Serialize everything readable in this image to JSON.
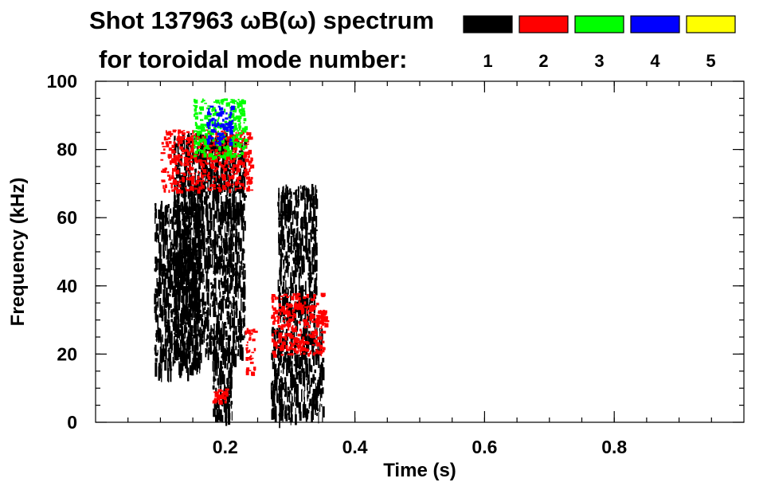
{
  "chart_data": {
    "type": "heatmap",
    "title_line1": "Shot 137963 ωB(ω) spectrum",
    "title_line2": "for toroidal mode number:",
    "xlabel": "Time (s)",
    "ylabel": "Frequency (kHz)",
    "xlim": [
      0.0,
      1.0
    ],
    "ylim": [
      0,
      100
    ],
    "x_ticks": [
      {
        "value": 0.2,
        "label": "0.2"
      },
      {
        "value": 0.4,
        "label": "0.4"
      },
      {
        "value": 0.6,
        "label": "0.6"
      },
      {
        "value": 0.8,
        "label": "0.8"
      }
    ],
    "y_ticks": [
      {
        "value": 0,
        "label": "0"
      },
      {
        "value": 20,
        "label": "20"
      },
      {
        "value": 40,
        "label": "40"
      },
      {
        "value": 60,
        "label": "60"
      },
      {
        "value": 80,
        "label": "80"
      },
      {
        "value": 100,
        "label": "100"
      }
    ],
    "legend": [
      {
        "mode": "1",
        "color": "#000000"
      },
      {
        "mode": "2",
        "color": "#ff0000"
      },
      {
        "mode": "3",
        "color": "#00ff00"
      },
      {
        "mode": "4",
        "color": "#0000ff"
      },
      {
        "mode": "5",
        "color": "#ffff00"
      }
    ],
    "regions": [
      {
        "mode": "1",
        "t": [
          0.09,
          0.16
        ],
        "f": [
          15,
          65
        ]
      },
      {
        "mode": "1",
        "t": [
          0.12,
          0.23
        ],
        "f": [
          20,
          85
        ]
      },
      {
        "mode": "1",
        "t": [
          0.27,
          0.35
        ],
        "f": [
          2,
          28
        ]
      },
      {
        "mode": "1",
        "t": [
          0.18,
          0.21
        ],
        "f": [
          2,
          22
        ]
      },
      {
        "mode": "1",
        "t": [
          0.28,
          0.34
        ],
        "f": [
          30,
          70
        ]
      },
      {
        "mode": "2",
        "t": [
          0.1,
          0.24
        ],
        "f": [
          68,
          86
        ]
      },
      {
        "mode": "2",
        "t": [
          0.23,
          0.245
        ],
        "f": [
          14,
          28
        ]
      },
      {
        "mode": "2",
        "t": [
          0.27,
          0.35
        ],
        "f": [
          20,
          38
        ]
      },
      {
        "mode": "2",
        "t": [
          0.34,
          0.355
        ],
        "f": [
          29,
          33
        ]
      },
      {
        "mode": "2",
        "t": [
          0.18,
          0.2
        ],
        "f": [
          6,
          10
        ]
      },
      {
        "mode": "3",
        "t": [
          0.15,
          0.23
        ],
        "f": [
          78,
          95
        ]
      },
      {
        "mode": "4",
        "t": [
          0.17,
          0.21
        ],
        "f": [
          82,
          93
        ]
      }
    ]
  }
}
